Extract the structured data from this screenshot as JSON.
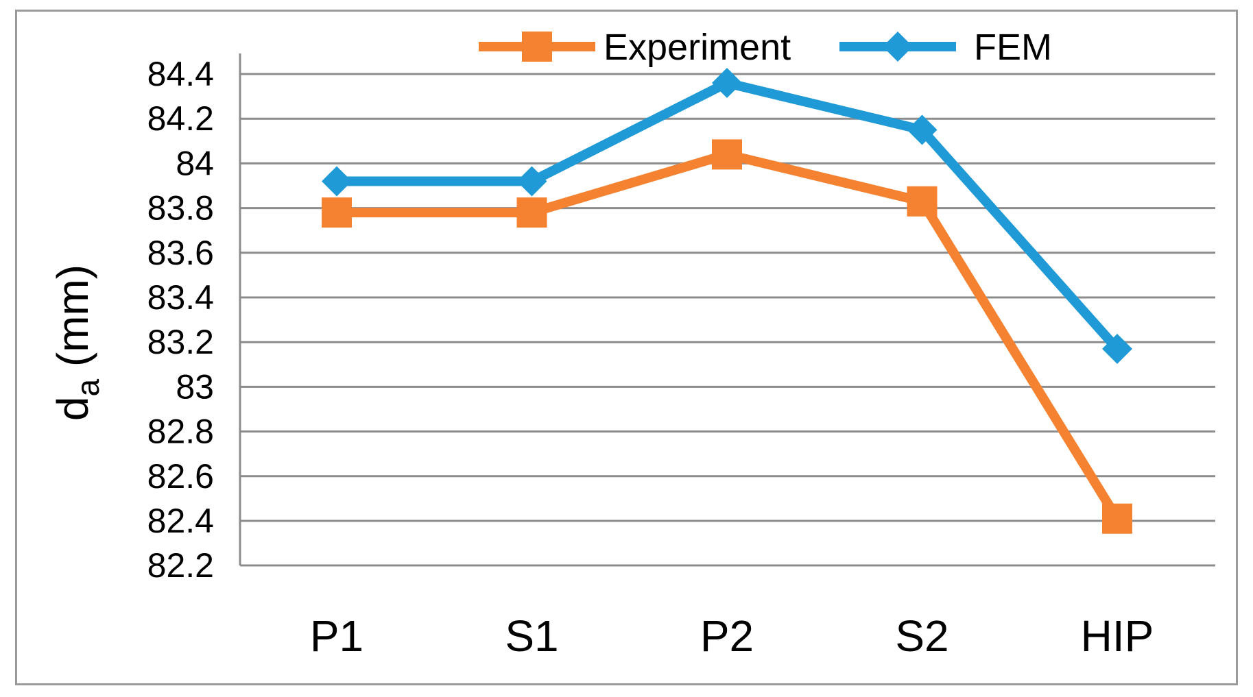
{
  "chart_data": {
    "type": "line",
    "title": "",
    "xlabel": "",
    "ylabel": "d",
    "ylabel_subscript": "a",
    "ylabel_unit": " (mm)",
    "categories": [
      "P1",
      "S1",
      "P2",
      "S2",
      "HIP"
    ],
    "ylim": [
      82.2,
      84.4
    ],
    "yticks": [
      "84.4",
      "84.2",
      "84",
      "83.8",
      "83.6",
      "83.4",
      "83.2",
      "83",
      "82.8",
      "82.6",
      "82.4",
      "82.2"
    ],
    "grid": true,
    "legend_position": "top",
    "series": [
      {
        "name": "Experiment",
        "color": "#f58231",
        "marker": "square",
        "values": [
          83.78,
          83.78,
          84.04,
          83.83,
          82.41
        ]
      },
      {
        "name": "FEM",
        "color": "#1f9ad6",
        "marker": "diamond",
        "values": [
          83.92,
          83.92,
          84.36,
          84.15,
          83.17
        ]
      }
    ]
  }
}
